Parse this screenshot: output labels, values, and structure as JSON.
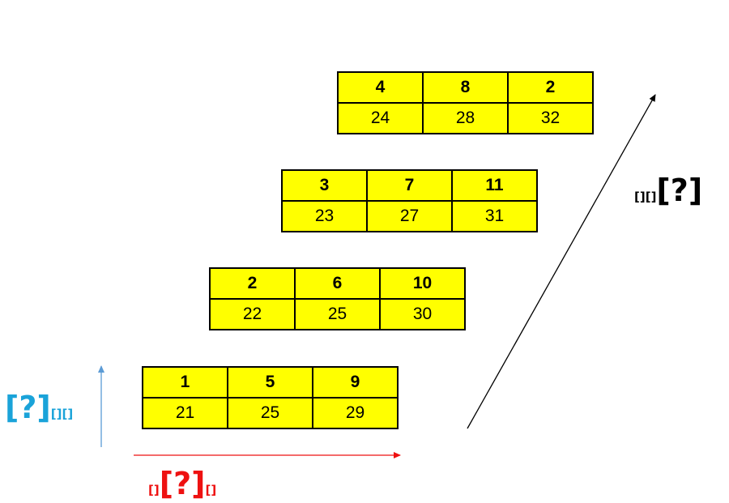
{
  "tables": [
    {
      "top": [
        "4",
        "8",
        "2"
      ],
      "bottom": [
        "24",
        "28",
        "32"
      ]
    },
    {
      "top": [
        "3",
        "7",
        "11"
      ],
      "bottom": [
        "23",
        "27",
        "31"
      ]
    },
    {
      "top": [
        "2",
        "6",
        "10"
      ],
      "bottom": [
        "22",
        "25",
        "30"
      ]
    },
    {
      "top": [
        "1",
        "5",
        "9"
      ],
      "bottom": [
        "21",
        "25",
        "29"
      ]
    }
  ],
  "labels": {
    "diagonal": {
      "prefix": "[][]",
      "main": "[?]",
      "suffix": ""
    },
    "vertical": {
      "prefix": "",
      "main": "[?]",
      "suffix": "[][]"
    },
    "horizontal": {
      "prefix": "[]",
      "main": "[?]",
      "suffix": "[]"
    }
  },
  "colors": {
    "cell_fill": "#ffff00",
    "diagonal_arrow": "#000000",
    "vertical_arrow": "#5b9bd5",
    "horizontal_arrow": "#ee1111"
  }
}
